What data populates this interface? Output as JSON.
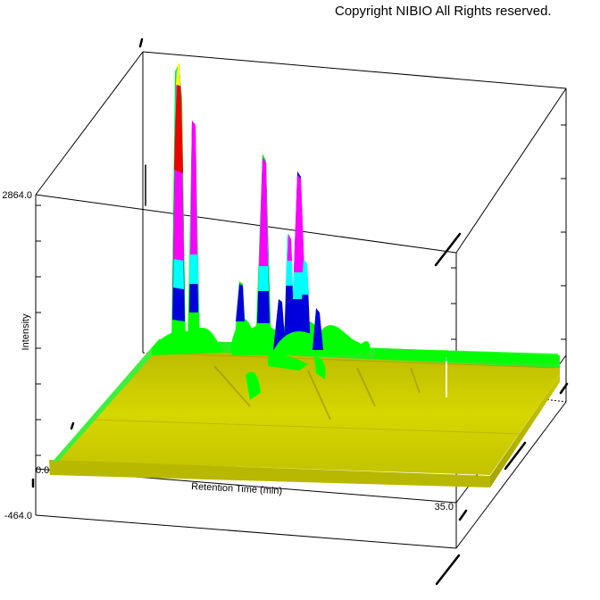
{
  "copyright": "Copyright NIBIO All Rights reserved.",
  "chart_data": {
    "type": "area",
    "title": "",
    "xlabel": "Retention Time (min)",
    "ylabel": "Intensity",
    "x_tick_labels": [
      "0.0",
      "35.0"
    ],
    "y_tick_labels": [
      "2864.0",
      "-464.0"
    ],
    "xlim": [
      0.0,
      35.0
    ],
    "zlim": [
      -464.0,
      2864.0
    ],
    "peaks": [
      {
        "x": 5.0,
        "intensity": 2864.0
      },
      {
        "x": 5.7,
        "intensity": 1900.0
      },
      {
        "x": 8.3,
        "intensity": 300.0
      },
      {
        "x": 9.0,
        "intensity": 700.0
      },
      {
        "x": 9.6,
        "intensity": 700.0
      },
      {
        "x": 14.0,
        "intensity": 2150.0
      },
      {
        "x": 15.8,
        "intensity": 1950.0
      },
      {
        "x": 16.6,
        "intensity": 1150.0
      },
      {
        "x": 17.2,
        "intensity": 1500.0
      },
      {
        "x": 18.2,
        "intensity": 700.0
      }
    ],
    "color_bands": [
      {
        "from": -464.0,
        "to": 300.0,
        "color": "#cccc00"
      },
      {
        "from": 300.0,
        "to": 700.0,
        "color": "#00ff00"
      },
      {
        "from": 700.0,
        "to": 1100.0,
        "color": "#0000dd"
      },
      {
        "from": 1100.0,
        "to": 1500.0,
        "color": "#00ffff"
      },
      {
        "from": 1500.0,
        "to": 2150.0,
        "color": "#ff00ff"
      },
      {
        "from": 2150.0,
        "to": 2700.0,
        "color": "#ee0000"
      },
      {
        "from": 2700.0,
        "to": 2864.0,
        "color": "#ffff00"
      }
    ],
    "grid": false,
    "legend": "none"
  }
}
